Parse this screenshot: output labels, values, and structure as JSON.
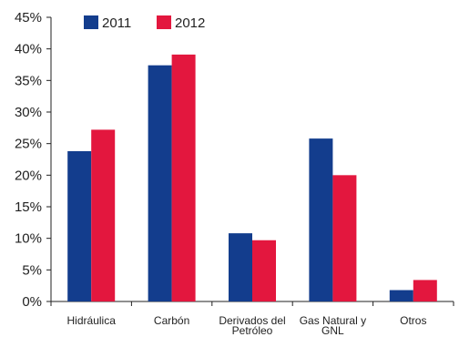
{
  "chart_data": {
    "type": "bar",
    "categories": [
      [
        "Hidráulica"
      ],
      [
        "Carbón"
      ],
      [
        "Derivados del",
        "Petróleo"
      ],
      [
        "Gas Natural y",
        "GNL"
      ],
      [
        "Otros"
      ]
    ],
    "series": [
      {
        "name": "2011",
        "color": "#133d8d",
        "values": [
          23.8,
          37.4,
          10.8,
          25.8,
          1.8
        ]
      },
      {
        "name": "2012",
        "color": "#e3173e",
        "values": [
          27.2,
          39.1,
          9.7,
          20.0,
          3.4
        ]
      }
    ],
    "ylim": [
      0,
      45
    ],
    "yticks": [
      "0%",
      "5%",
      "10%",
      "15%",
      "20%",
      "25%",
      "30%",
      "35%",
      "40%",
      "45%"
    ],
    "ytick_values": [
      0,
      5,
      10,
      15,
      20,
      25,
      30,
      35,
      40,
      45
    ],
    "legend_position": "top-left",
    "grid": false
  }
}
